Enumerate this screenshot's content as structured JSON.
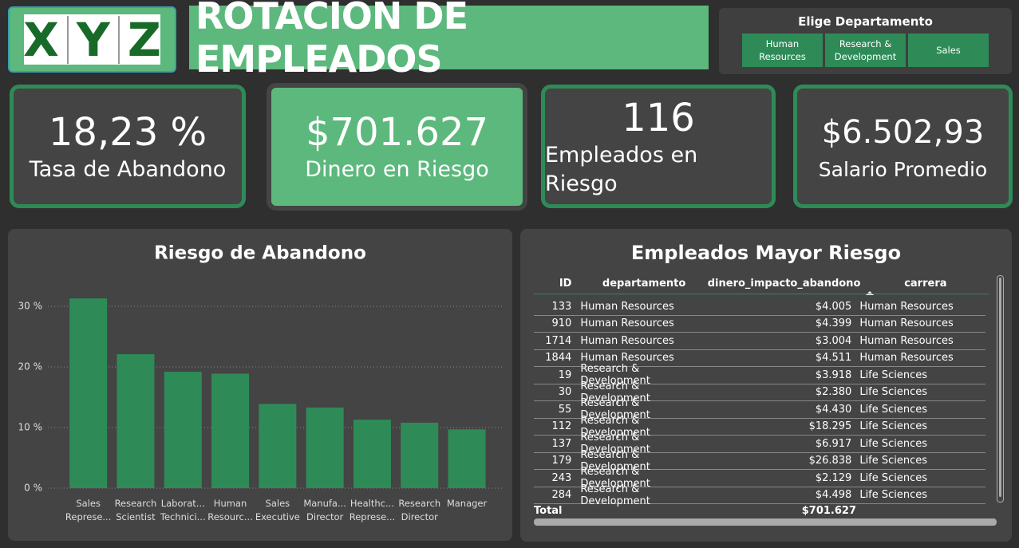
{
  "header": {
    "logo": [
      "X",
      "Y",
      "Z"
    ],
    "title": "ROTACION DE EMPLEADOS"
  },
  "slicer": {
    "title": "Elige Departamento",
    "options": [
      "Human Resources",
      "Research & Development",
      "Sales"
    ]
  },
  "kpis": [
    {
      "value": "18,23 %",
      "label": "Tasa de Abandono"
    },
    {
      "value": "$701.627",
      "label": "Dinero en Riesgo"
    },
    {
      "value": "116",
      "label": "Empleados en Riesgo"
    },
    {
      "value": "$6.502,93",
      "label": "Salario Promedio"
    }
  ],
  "chart_data": {
    "type": "bar",
    "title": "Riesgo de Abandono",
    "categories": [
      "Sales Represe...",
      "Research Scientist",
      "Laborat... Technici...",
      "Human Resourc...",
      "Sales Executive",
      "Manufa... Director",
      "Healthc... Represe...",
      "Research Director",
      "Manager"
    ],
    "values": [
      31.3,
      22.1,
      19.2,
      18.9,
      13.9,
      13.3,
      11.3,
      10.8,
      9.7
    ],
    "color": "#2e8b57",
    "ylim": [
      0,
      33
    ],
    "yticks": [
      {
        "value": 0,
        "label": "0 %"
      },
      {
        "value": 10,
        "label": "10 %"
      },
      {
        "value": 20,
        "label": "20 %"
      },
      {
        "value": 30,
        "label": "30 %"
      }
    ],
    "grid": true
  },
  "table": {
    "title": "Empleados Mayor Riesgo",
    "columns": [
      "ID",
      "departamento",
      "dinero_impacto_abandono",
      "carrera"
    ],
    "rows": [
      [
        "133",
        "Human Resources",
        "$4.005",
        "Human Resources"
      ],
      [
        "910",
        "Human Resources",
        "$4.399",
        "Human Resources"
      ],
      [
        "1714",
        "Human Resources",
        "$3.004",
        "Human Resources"
      ],
      [
        "1844",
        "Human Resources",
        "$4.511",
        "Human Resources"
      ],
      [
        "19",
        "Research & Development",
        "$3.918",
        "Life Sciences"
      ],
      [
        "30",
        "Research & Development",
        "$2.380",
        "Life Sciences"
      ],
      [
        "55",
        "Research & Development",
        "$4.430",
        "Life Sciences"
      ],
      [
        "112",
        "Research & Development",
        "$18.295",
        "Life Sciences"
      ],
      [
        "137",
        "Research & Development",
        "$6.917",
        "Life Sciences"
      ],
      [
        "179",
        "Research & Development",
        "$26.838",
        "Life Sciences"
      ],
      [
        "243",
        "Research & Development",
        "$2.129",
        "Life Sciences"
      ],
      [
        "284",
        "Research & Development",
        "$4.498",
        "Life Sciences"
      ]
    ],
    "total": [
      "Total",
      "$701.627"
    ]
  }
}
